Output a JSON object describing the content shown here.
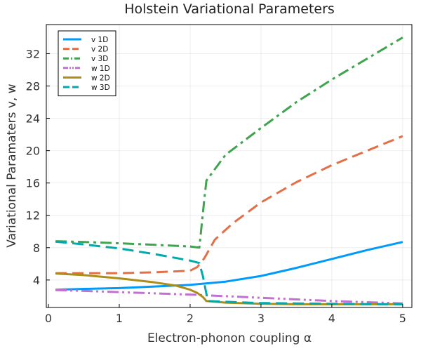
{
  "chart_data": {
    "type": "line",
    "title": "Holstein Variational Parameters",
    "xlabel": "Electron-phonon coupling α",
    "ylabel": "Variational Paramaters v, w",
    "xlim": [
      -0.03,
      5.13
    ],
    "ylim": [
      0.6,
      35.6
    ],
    "xticks": [
      0,
      1,
      2,
      3,
      4,
      5
    ],
    "yticks": [
      4,
      8,
      12,
      16,
      20,
      24,
      28,
      32
    ],
    "grid": true,
    "legend_position": "top-left",
    "series": [
      {
        "name": "v 1D",
        "color": "#009AFA",
        "dash": "solid",
        "x": [
          0.1,
          0.5,
          1.0,
          1.5,
          2.0,
          2.5,
          3.0,
          3.5,
          4.0,
          4.5,
          5.0
        ],
        "y": [
          2.8,
          2.9,
          3.0,
          3.2,
          3.4,
          3.8,
          4.5,
          5.5,
          6.6,
          7.7,
          8.7
        ]
      },
      {
        "name": "v 2D",
        "color": "#E36F47",
        "dash": "dash",
        "x": [
          0.1,
          0.5,
          1.0,
          1.5,
          2.0,
          2.1,
          2.2,
          2.35,
          2.6,
          3.0,
          3.5,
          4.0,
          4.5,
          5.0
        ],
        "y": [
          4.85,
          4.85,
          4.85,
          4.95,
          5.15,
          5.6,
          6.7,
          9.0,
          11.0,
          13.6,
          16.1,
          18.2,
          20.0,
          21.8
        ]
      },
      {
        "name": "v 3D",
        "color": "#3EA44E",
        "dash": "dashdot",
        "x": [
          0.1,
          0.5,
          1.0,
          1.5,
          2.0,
          2.13,
          2.2,
          2.23,
          2.5,
          3.0,
          3.5,
          4.0,
          4.5,
          5.0
        ],
        "y": [
          8.8,
          8.7,
          8.55,
          8.35,
          8.15,
          8.0,
          14.0,
          16.3,
          19.5,
          22.8,
          26.0,
          28.8,
          31.4,
          34.0
        ]
      },
      {
        "name": "w 1D",
        "color": "#C271D2",
        "dash": "dashdotdot",
        "x": [
          0.1,
          0.5,
          1.0,
          1.5,
          2.0,
          2.5,
          3.0,
          3.5,
          4.0,
          4.5,
          5.0
        ],
        "y": [
          2.75,
          2.65,
          2.5,
          2.35,
          2.2,
          2.0,
          1.8,
          1.6,
          1.4,
          1.25,
          1.1
        ]
      },
      {
        "name": "w 2D",
        "color": "#AC8D18",
        "dash": "solid",
        "x": [
          0.1,
          0.5,
          1.0,
          1.5,
          1.8,
          2.0,
          2.1,
          2.18,
          2.23,
          2.5,
          3.0,
          3.5,
          4.0,
          4.5,
          5.0
        ],
        "y": [
          4.8,
          4.6,
          4.2,
          3.7,
          3.3,
          2.8,
          2.4,
          1.9,
          1.4,
          1.2,
          1.05,
          1.0,
          1.0,
          1.0,
          1.0
        ]
      },
      {
        "name": "w 3D",
        "color": "#00A9AD",
        "dash": "dash",
        "x": [
          0.1,
          0.5,
          1.0,
          1.5,
          2.0,
          2.13,
          2.18,
          2.25,
          2.5,
          3.0,
          3.5,
          4.0,
          4.5,
          5.0
        ],
        "y": [
          8.75,
          8.4,
          7.9,
          7.2,
          6.4,
          6.1,
          4.5,
          1.4,
          1.3,
          1.15,
          1.1,
          1.05,
          1.02,
          1.0
        ]
      }
    ]
  }
}
